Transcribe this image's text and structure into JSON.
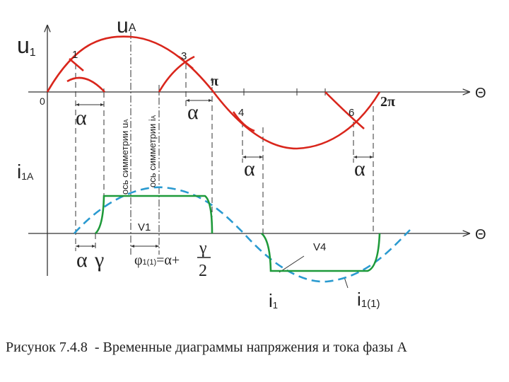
{
  "upper_axis": {
    "y_label": {
      "main": "u",
      "sub": "1"
    },
    "curve_label": {
      "main": "u",
      "sub": "A"
    },
    "origin": "0",
    "x_label": "Θ",
    "pi": "π",
    "two_pi": "2π",
    "points": [
      "1",
      "3",
      "4",
      "6"
    ],
    "alpha_labels": [
      "α",
      "α",
      "α",
      "α"
    ],
    "symmetry_axes": [
      {
        "text": "ось симметрии u",
        "sub": "A"
      },
      {
        "text": "ось симметрии i",
        "sub": "A"
      }
    ]
  },
  "lower_axis": {
    "y_label": {
      "main": "i",
      "sub": "1A"
    },
    "x_label": "Θ",
    "valves": [
      "V1",
      "V4"
    ],
    "alpha": "α",
    "gamma": "γ",
    "phase_formula": {
      "phi": "φ",
      "sub": "1(1)",
      "rest": "=α+",
      "numerator": "γ",
      "denominator": "2"
    },
    "current_labels": [
      {
        "main": "i",
        "sub": "1"
      },
      {
        "main": "i",
        "sub": "1(1)"
      }
    ]
  },
  "caption": "Рисунок 7.4.8  - Временные диаграммы напряжения и тока фазы А"
}
